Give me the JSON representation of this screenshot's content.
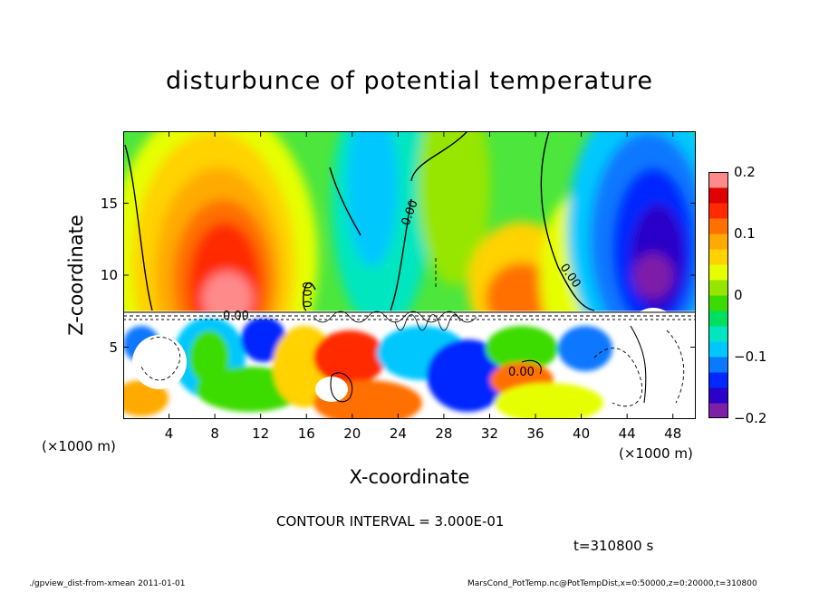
{
  "chart_data": {
    "type": "heatmap",
    "title": "disturbunce of potential temperature",
    "xlabel": "X-coordinate",
    "ylabel": "Z-coordinate",
    "x_unit_left": "(×1000 m)",
    "x_unit_right": "(×1000 m)",
    "xlim": [
      0,
      50
    ],
    "ylim": [
      0,
      20
    ],
    "xticks": [
      4,
      8,
      12,
      16,
      20,
      24,
      28,
      32,
      36,
      40,
      44,
      48
    ],
    "yticks": [
      5,
      10,
      15
    ],
    "colorbar": {
      "range": [
        -0.2,
        0.2
      ],
      "ticks": [
        {
          "value": 0.2,
          "label": "0.2"
        },
        {
          "value": 0.1,
          "label": "0.1"
        },
        {
          "value": 0,
          "label": "0"
        },
        {
          "value": -0.1,
          "label": "−0.1"
        },
        {
          "value": -0.2,
          "label": "−0.2"
        }
      ],
      "colors": [
        "#7e1fa8",
        "#2b00c8",
        "#0028ff",
        "#0a78ff",
        "#00c8ff",
        "#00e6c0",
        "#00e060",
        "#3cdc00",
        "#96e600",
        "#e6ff00",
        "#ffd200",
        "#ffaa00",
        "#ff7000",
        "#ff2a00",
        "#e00000",
        "#ff8a8a"
      ]
    },
    "contour_labels": [
      "0.00",
      "0.00",
      "0.00",
      "0.00",
      "0.00"
    ],
    "contour_interval": "CONTOUR INTERVAL = 3.000E-01",
    "time": "t=310800 s"
  },
  "footer": {
    "left": "./gpview_dist-from-xmean   2011-01-01",
    "right": "MarsCond_PotTemp.nc@PotTempDist,x=0:50000,z=0:20000,t=310800"
  }
}
